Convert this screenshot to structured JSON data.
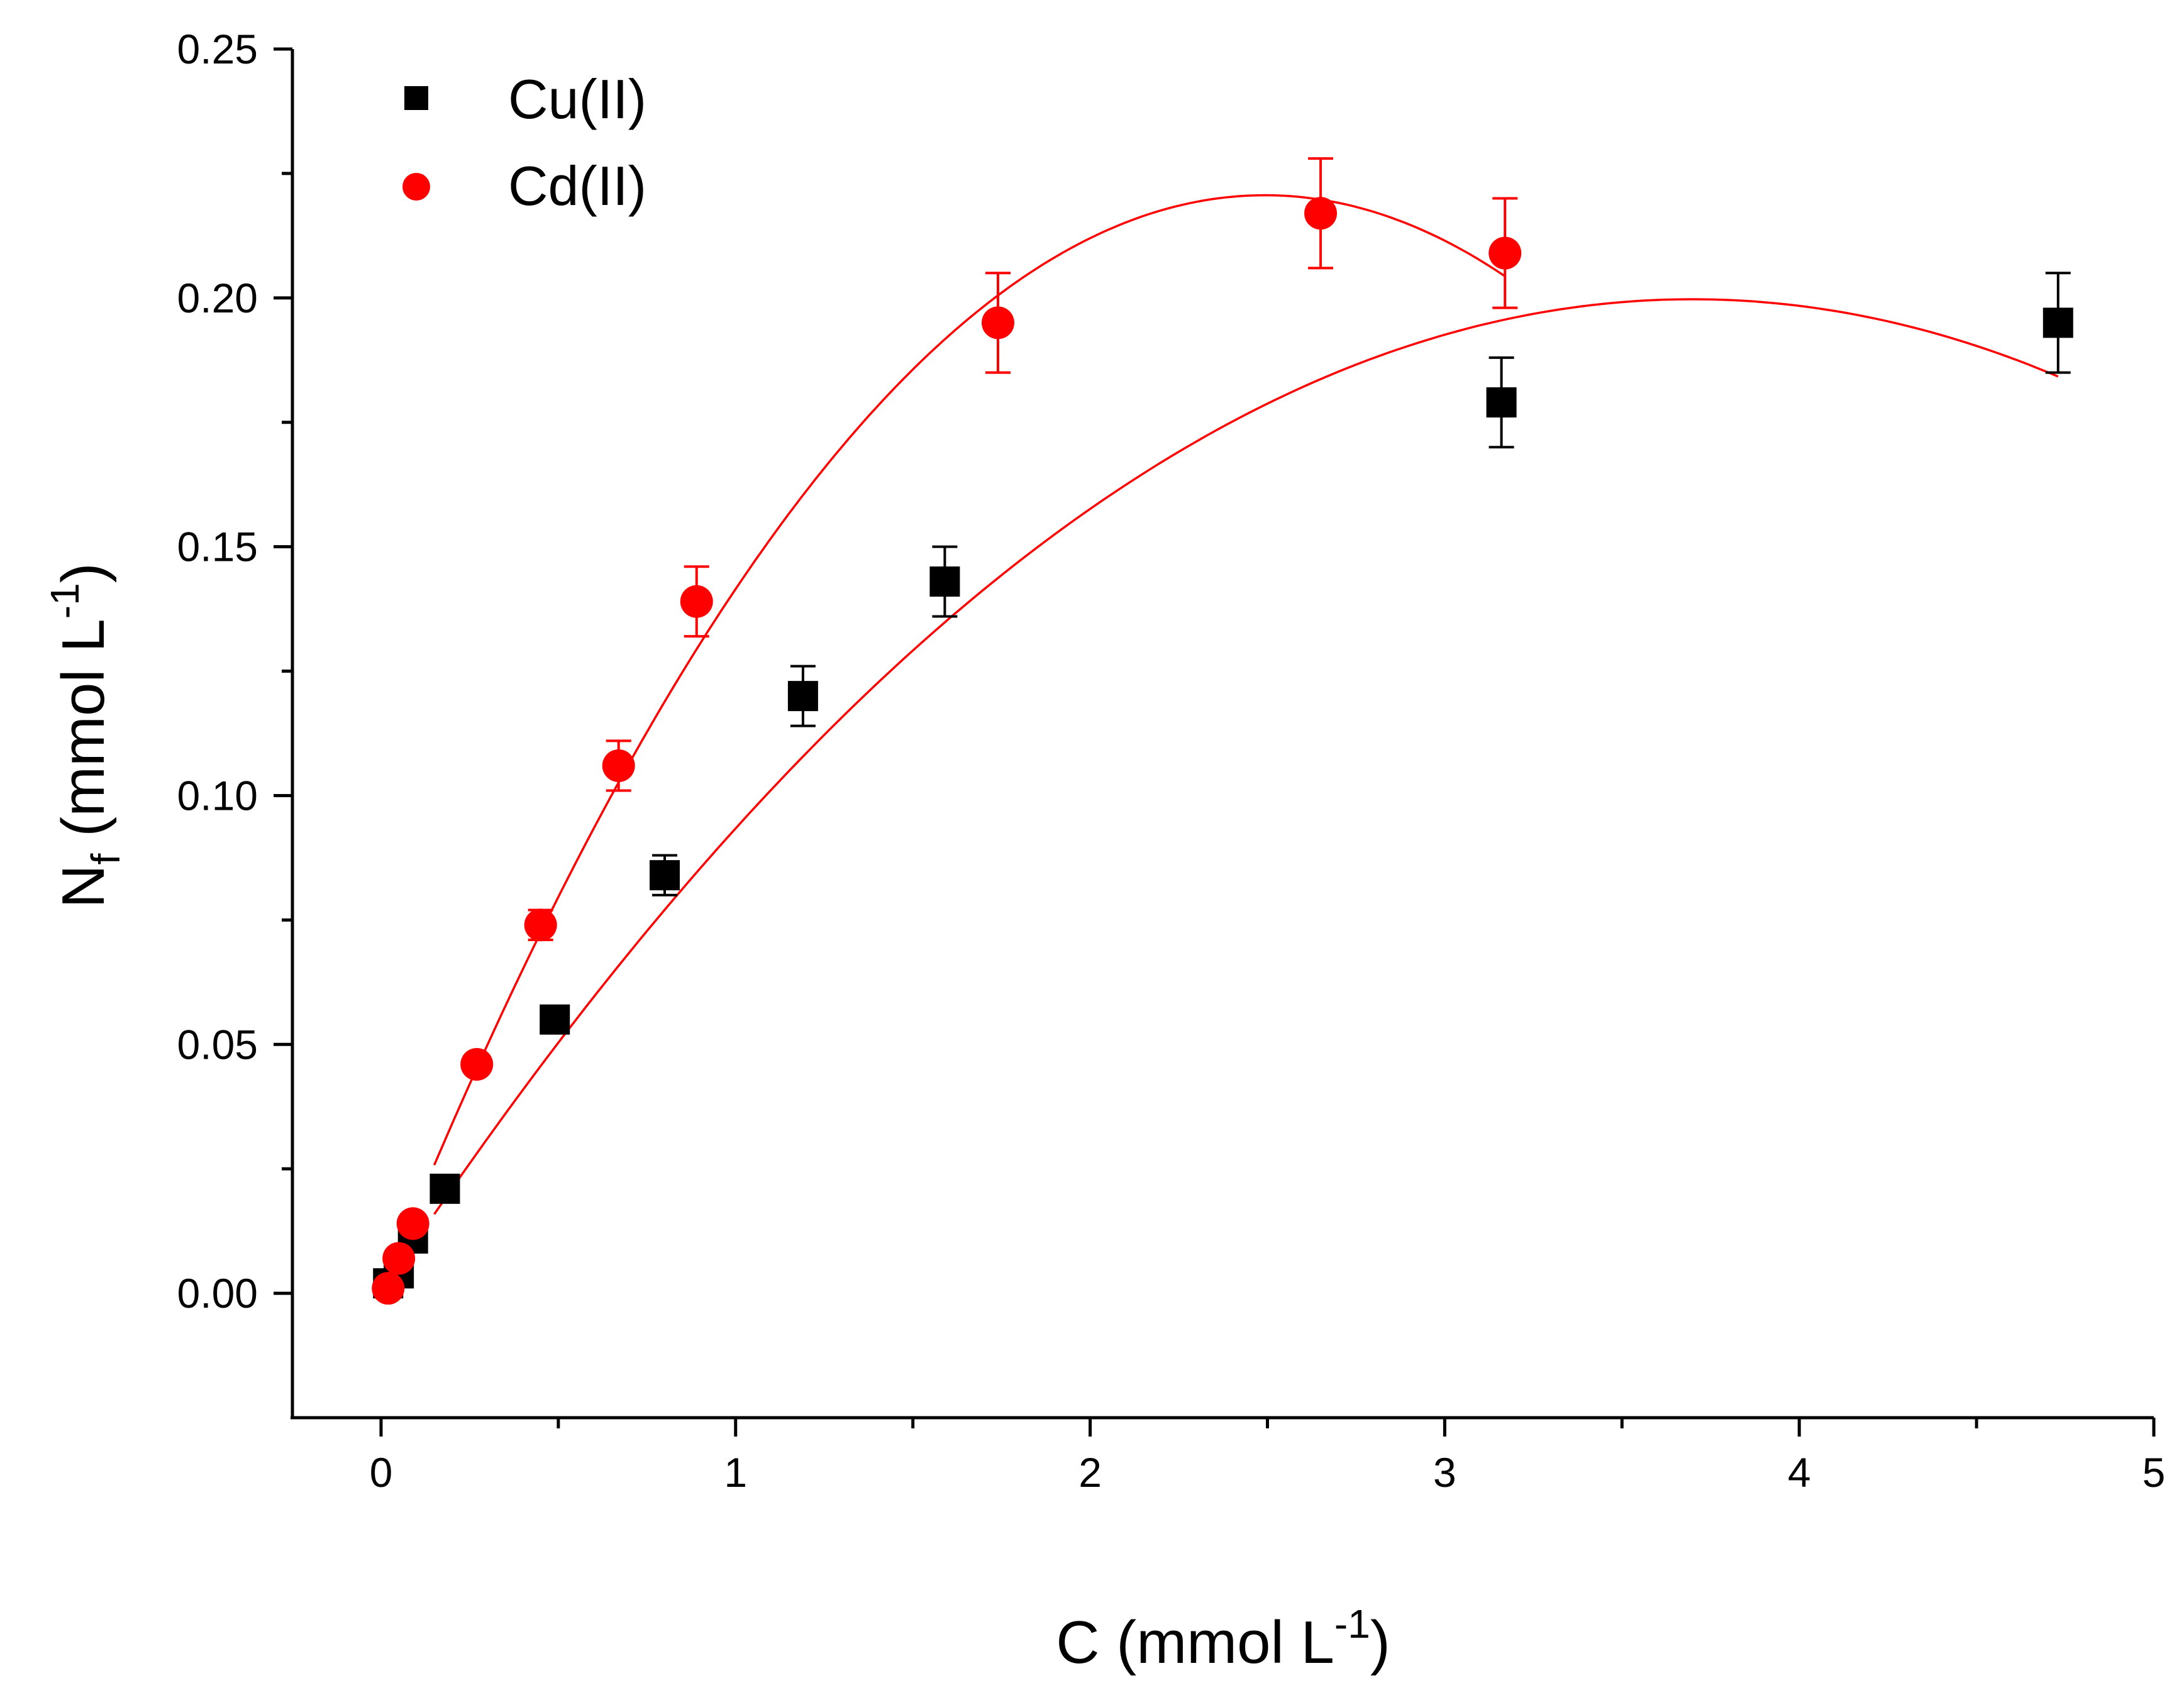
{
  "chart_data": {
    "type": "scatter",
    "xlabel": {
      "main": "C (mmol L",
      "sup": "-1",
      "tail": ")"
    },
    "ylabel": {
      "main": "N",
      "sub": "f",
      "mid": " (mmol L",
      "sup": "-1",
      "tail": ")"
    },
    "xlim": [
      -0.25,
      5
    ],
    "ylim": [
      -0.025,
      0.25
    ],
    "xticks": [
      0,
      1,
      2,
      3,
      4,
      5
    ],
    "xtick_labels": [
      "0",
      "1",
      "2",
      "3",
      "4",
      "5"
    ],
    "xminor": [
      0.5,
      1.5,
      2.5,
      3.5,
      4.5
    ],
    "yticks": [
      0.0,
      0.05,
      0.1,
      0.15,
      0.2,
      0.25
    ],
    "ytick_labels": [
      "0.00",
      "0.05",
      "0.10",
      "0.15",
      "0.20",
      "0.25"
    ],
    "yminor": [
      0.025,
      0.075,
      0.125,
      0.175,
      0.225
    ],
    "series": [
      {
        "name": "Cu(II)",
        "marker": "square",
        "color": "#000000",
        "fit_color": "#ff0000",
        "x": [
          0.02,
          0.05,
          0.09,
          0.18,
          0.49,
          0.8,
          1.19,
          1.59,
          3.16,
          4.73
        ],
        "y": [
          0.002,
          0.004,
          0.011,
          0.021,
          0.055,
          0.084,
          0.12,
          0.143,
          0.179,
          0.195
        ],
        "err": [
          0.0,
          0.0,
          0.0,
          0.0,
          0.0,
          0.004,
          0.006,
          0.007,
          0.009,
          0.01
        ],
        "fit": {
          "x_start": 0.15,
          "x_end": 4.73,
          "coeffs": [
            0.0,
            0.108,
            -0.0146
          ]
        }
      },
      {
        "name": "Cd(II)",
        "marker": "circle",
        "color": "#ff0000",
        "fit_color": "#ff0000",
        "x": [
          0.02,
          0.05,
          0.09,
          0.27,
          0.45,
          0.67,
          0.89,
          1.74,
          2.65,
          3.17
        ],
        "y": [
          0.001,
          0.007,
          0.014,
          0.046,
          0.074,
          0.106,
          0.139,
          0.195,
          0.217,
          0.209
        ],
        "err": [
          0.0,
          0.0,
          0.0,
          0.0,
          0.003,
          0.005,
          0.007,
          0.01,
          0.011,
          0.011
        ],
        "fit": {
          "x_start": 0.15,
          "x_end": 3.17,
          "coeffs": [
            0.0,
            0.177,
            -0.0355
          ]
        }
      }
    ]
  }
}
